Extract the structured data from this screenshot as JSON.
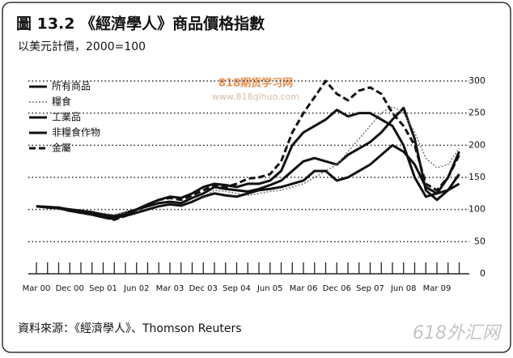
{
  "chart_data": {
    "type": "line",
    "title": "圖 13.2 《經濟學人》商品價格指數",
    "subtitle": "以美元計價，2000=100",
    "source": "資料來源：《經濟學人》、Thomson Reuters",
    "watermarks": [
      "818期货学习网",
      "www.818qihuo.com",
      "618外汇网"
    ],
    "categories": [
      "Mar 00",
      null,
      null,
      "Dec 00",
      null,
      null,
      "Sep 01",
      null,
      null,
      "Jun 02",
      null,
      null,
      "Mar 03",
      null,
      null,
      "Dec 03",
      null,
      null,
      "Sep 04",
      null,
      null,
      "Jun 05",
      null,
      null,
      "Mar 06",
      null,
      null,
      "Dec 06",
      null,
      null,
      "Sep 07",
      null,
      null,
      "Jun 08",
      null,
      null,
      "Mar 09",
      null,
      null
    ],
    "ylim": [
      0,
      300
    ],
    "yticks": [
      0,
      50,
      100,
      150,
      200,
      250,
      300
    ],
    "grid": true,
    "legend": "top-left",
    "series": [
      {
        "name": "所有商品",
        "color": "#111111",
        "style": "solid",
        "width": 3,
        "values": [
          105,
          104,
          103,
          100,
          98,
          96,
          92,
          90,
          95,
          100,
          105,
          110,
          112,
          110,
          118,
          125,
          135,
          132,
          130,
          128,
          132,
          138,
          145,
          160,
          175,
          180,
          175,
          170,
          185,
          195,
          205,
          220,
          240,
          258,
          210,
          130,
          115,
          130,
          155
        ]
      },
      {
        "name": "糧食",
        "color": "#777777",
        "style": "dotted",
        "width": 1.5,
        "values": [
          105,
          103,
          102,
          100,
          98,
          96,
          94,
          92,
          95,
          98,
          100,
          105,
          108,
          105,
          112,
          120,
          130,
          128,
          125,
          122,
          125,
          128,
          130,
          135,
          140,
          150,
          160,
          170,
          190,
          210,
          230,
          250,
          260,
          250,
          220,
          180,
          165,
          170,
          195
        ]
      },
      {
        "name": "工業品",
        "color": "#111111",
        "style": "solid",
        "width": 3,
        "values": [
          105,
          104,
          102,
          98,
          95,
          92,
          88,
          85,
          92,
          100,
          108,
          115,
          120,
          118,
          125,
          135,
          140,
          138,
          135,
          140,
          140,
          145,
          160,
          200,
          220,
          230,
          240,
          255,
          245,
          250,
          250,
          240,
          230,
          200,
          150,
          120,
          125,
          150,
          190
        ]
      },
      {
        "name": "非糧食作物",
        "color": "#111111",
        "style": "solid",
        "width": 3,
        "values": [
          105,
          103,
          102,
          100,
          98,
          95,
          92,
          88,
          90,
          95,
          100,
          105,
          108,
          106,
          112,
          120,
          125,
          122,
          120,
          125,
          130,
          132,
          135,
          140,
          145,
          160,
          160,
          145,
          150,
          160,
          170,
          185,
          200,
          190,
          170,
          135,
          125,
          130,
          140
        ]
      },
      {
        "name": "金屬",
        "color": "#111111",
        "style": "dashed",
        "width": 3,
        "values": [
          105,
          104,
          102,
          98,
          95,
          92,
          88,
          84,
          90,
          100,
          108,
          115,
          118,
          115,
          122,
          130,
          138,
          135,
          140,
          148,
          150,
          155,
          175,
          220,
          250,
          275,
          300,
          280,
          270,
          285,
          290,
          280,
          250,
          230,
          200,
          140,
          130,
          150,
          185
        ]
      }
    ]
  }
}
